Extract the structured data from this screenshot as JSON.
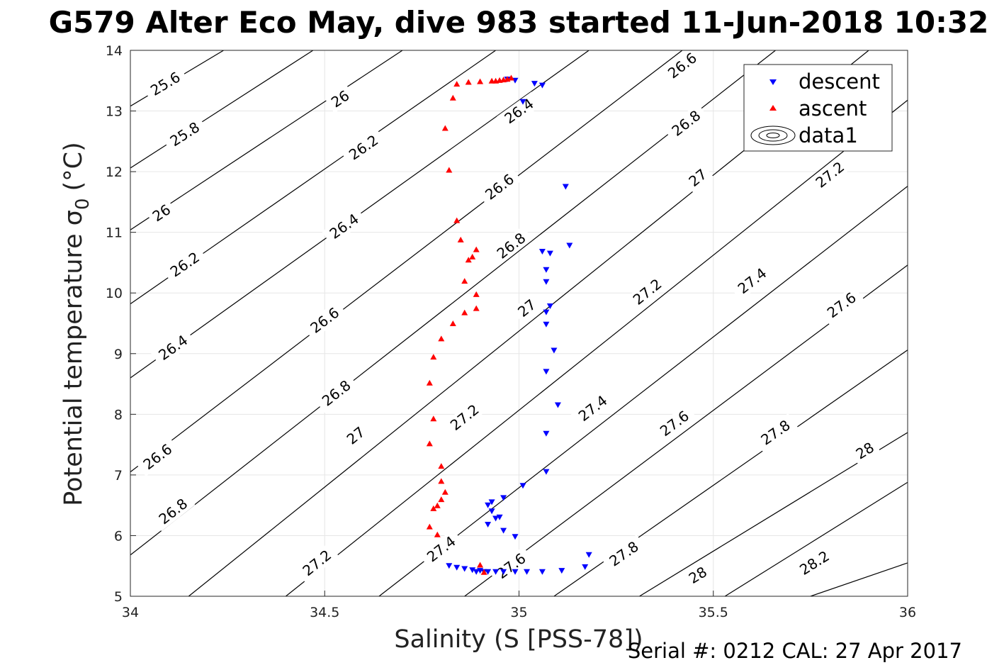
{
  "chart_data": {
    "type": "scatter",
    "title": "G579 Alter Eco May, dive 983 started 11-Jun-2018 10:32",
    "xlabel": "Salinity (S [PSS-78])",
    "ylabel_main": "Potential temperature σ",
    "ylabel_sub": "0",
    "ylabel_unit": "(°C)",
    "xlim": [
      34,
      36
    ],
    "ylim": [
      5,
      14
    ],
    "x_ticks": [
      "34",
      "34.5",
      "35",
      "35.5",
      "36"
    ],
    "y_ticks": [
      "5",
      "6",
      "7",
      "8",
      "9",
      "10",
      "11",
      "12",
      "13",
      "14"
    ],
    "grid": true,
    "legend_position": "top-right",
    "legend": [
      "descent",
      "ascent",
      "data1"
    ],
    "footer": "Serial #: 0212  CAL: 27 Apr 2017",
    "colors": {
      "descent": "#0000ff",
      "ascent": "#ff0000",
      "contour": "#000000",
      "grid": "#e6e6e6"
    },
    "contours": [
      {
        "label": "25.6",
        "points": [
          [
            34.0,
            13.08
          ],
          [
            34.24,
            14.0
          ]
        ],
        "labels_at": [
          [
            34.09,
            13.45
          ]
        ]
      },
      {
        "label": "25.8",
        "points": [
          [
            34.0,
            12.06
          ],
          [
            34.47,
            14.0
          ]
        ],
        "labels_at": [
          [
            34.14,
            12.62
          ]
        ]
      },
      {
        "label": "26",
        "points": [
          [
            34.0,
            11.04
          ],
          [
            34.7,
            14.0
          ]
        ],
        "labels_at": [
          [
            34.08,
            11.32
          ],
          [
            34.54,
            13.2
          ]
        ]
      },
      {
        "label": "26.2",
        "points": [
          [
            34.0,
            9.82
          ],
          [
            34.94,
            14.0
          ]
        ],
        "labels_at": [
          [
            34.14,
            10.47
          ],
          [
            34.6,
            12.4
          ]
        ]
      },
      {
        "label": "26.4",
        "points": [
          [
            34.0,
            8.6
          ],
          [
            35.18,
            14.0
          ]
        ],
        "labels_at": [
          [
            34.11,
            9.1
          ],
          [
            34.55,
            11.1
          ],
          [
            35.0,
            13.0
          ]
        ]
      },
      {
        "label": "26.6",
        "points": [
          [
            34.0,
            7.05
          ],
          [
            35.42,
            14.0
          ]
        ],
        "labels_at": [
          [
            34.07,
            7.3
          ],
          [
            34.5,
            9.55
          ],
          [
            34.95,
            11.75
          ],
          [
            35.42,
            13.75
          ]
        ]
      },
      {
        "label": "26.8",
        "points": [
          [
            34.0,
            5.68
          ],
          [
            35.66,
            14.0
          ]
        ],
        "labels_at": [
          [
            34.11,
            6.4
          ],
          [
            34.53,
            8.35
          ],
          [
            34.98,
            10.78
          ],
          [
            35.43,
            12.8
          ]
        ]
      },
      {
        "label": "27",
        "points": [
          [
            34.15,
            5.0
          ],
          [
            35.9,
            14.0
          ]
        ],
        "labels_at": [
          [
            34.58,
            7.65
          ],
          [
            35.02,
            9.75
          ],
          [
            35.46,
            11.9
          ]
        ]
      },
      {
        "label": "27.2",
        "points": [
          [
            34.4,
            5.0
          ],
          [
            36.0,
            13.18
          ]
        ],
        "labels_at": [
          [
            34.48,
            5.55
          ],
          [
            34.86,
            7.95
          ],
          [
            35.33,
            10.02
          ],
          [
            35.8,
            11.95
          ]
        ]
      },
      {
        "label": "27.4",
        "points": [
          [
            34.64,
            5.0
          ],
          [
            36.0,
            11.76
          ]
        ],
        "labels_at": [
          [
            34.8,
            5.78
          ],
          [
            35.19,
            8.1
          ],
          [
            35.6,
            10.2
          ]
        ]
      },
      {
        "label": "27.6",
        "points": [
          [
            34.86,
            5.0
          ],
          [
            36.0,
            10.46
          ]
        ],
        "labels_at": [
          [
            34.98,
            5.5
          ],
          [
            35.4,
            7.85
          ],
          [
            35.83,
            9.8
          ]
        ]
      },
      {
        "label": "27.8",
        "points": [
          [
            35.09,
            5.0
          ],
          [
            36.0,
            9.06
          ]
        ],
        "labels_at": [
          [
            35.27,
            5.7
          ],
          [
            35.66,
            7.7
          ]
        ]
      },
      {
        "label": "28",
        "points": [
          [
            35.31,
            5.0
          ],
          [
            36.0,
            7.7
          ]
        ],
        "labels_at": [
          [
            35.46,
            5.35
          ],
          [
            35.89,
            7.4
          ]
        ]
      },
      {
        "label": "28.2",
        "points": [
          [
            35.53,
            5.0
          ],
          [
            36.0,
            6.88
          ]
        ],
        "labels_at": [
          [
            35.76,
            5.55
          ]
        ]
      },
      {
        "label": "",
        "points": [
          [
            35.75,
            5.0
          ],
          [
            36.0,
            5.55
          ]
        ],
        "labels_at": []
      }
    ],
    "series": [
      {
        "name": "descent",
        "marker": "triangle-down",
        "x": [
          34.99,
          34.97,
          35.01,
          35.04,
          35.06,
          35.12,
          35.13,
          35.08,
          35.06,
          35.07,
          35.07,
          35.08,
          35.07,
          35.07,
          35.09,
          35.07,
          35.1,
          35.07,
          35.07,
          35.01,
          34.96,
          34.93,
          34.92,
          34.93,
          34.92,
          34.94,
          34.95,
          34.96,
          34.99,
          35.18,
          35.17,
          35.11,
          35.06,
          35.02,
          34.99,
          34.96,
          34.94,
          34.92,
          34.9,
          34.88,
          34.86,
          34.84,
          34.82,
          34.91,
          34.89
        ],
        "y": [
          13.5,
          13.52,
          13.15,
          13.45,
          13.42,
          11.75,
          10.78,
          10.65,
          10.68,
          10.38,
          10.18,
          9.78,
          9.68,
          9.48,
          9.05,
          8.7,
          8.15,
          7.68,
          7.05,
          6.82,
          6.62,
          6.55,
          6.5,
          6.4,
          6.18,
          6.28,
          6.3,
          6.08,
          5.98,
          5.68,
          5.48,
          5.42,
          5.4,
          5.4,
          5.4,
          5.4,
          5.4,
          5.4,
          5.42,
          5.43,
          5.45,
          5.47,
          5.5,
          5.4,
          5.4
        ]
      },
      {
        "name": "ascent",
        "marker": "triangle-up",
        "x": [
          34.98,
          34.97,
          34.96,
          34.95,
          34.94,
          34.93,
          34.9,
          34.87,
          34.84,
          34.83,
          34.81,
          34.82,
          34.84,
          34.85,
          34.89,
          34.88,
          34.87,
          34.86,
          34.89,
          34.89,
          34.86,
          34.83,
          34.8,
          34.78,
          34.77,
          34.78,
          34.77,
          34.8,
          34.8,
          34.81,
          34.8,
          34.79,
          34.78,
          34.77,
          34.79,
          34.9,
          34.91
        ],
        "y": [
          13.55,
          13.53,
          13.52,
          13.51,
          13.5,
          13.5,
          13.49,
          13.48,
          13.45,
          13.22,
          12.72,
          12.03,
          11.2,
          10.88,
          10.72,
          10.6,
          10.55,
          10.2,
          9.98,
          9.75,
          9.68,
          9.5,
          9.25,
          8.95,
          8.52,
          7.93,
          7.52,
          7.15,
          6.9,
          6.72,
          6.6,
          6.5,
          6.45,
          6.15,
          6.02,
          5.52,
          5.4
        ]
      }
    ]
  }
}
